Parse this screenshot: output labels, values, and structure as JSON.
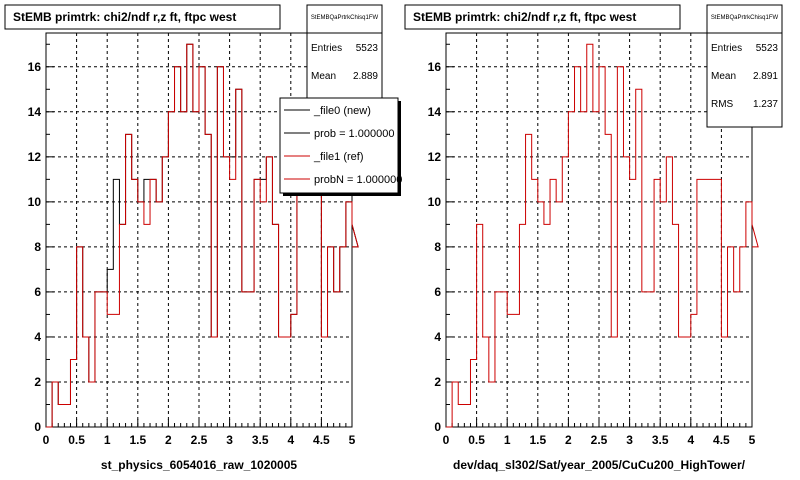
{
  "chart_data": [
    {
      "type": "histogram",
      "title": "StEMB primtrk: chi2/ndf r,z ft, ftpc west",
      "xlabel": "st_physics_6054016_raw_1020005",
      "xlim": [
        0,
        5
      ],
      "ylim": [
        0,
        17.5
      ],
      "grid": true,
      "x_ticks": [
        "0",
        "0.5",
        "1",
        "1.5",
        "2",
        "2.5",
        "3",
        "3.5",
        "4",
        "4.5",
        "5"
      ],
      "y_ticks": [
        "0",
        "2",
        "4",
        "6",
        "8",
        "10",
        "12",
        "14",
        "16"
      ],
      "stats": {
        "name": "StEMBQaPrtrkChisq1FW",
        "rows": [
          {
            "label": "Entries",
            "value": "5523"
          },
          {
            "label": "Mean",
            "value": "2.889"
          }
        ]
      },
      "legend": {
        "placement": "top-right",
        "entries": [
          {
            "label": "_file0 (new)",
            "color": "#000000"
          },
          {
            "label": "prob = 1.000000",
            "color": "#000000"
          },
          {
            "label": "_file1 (ref)",
            "color": "#cc0000"
          },
          {
            "label": "probN = 1.000000",
            "color": "#cc0000"
          }
        ]
      },
      "series": [
        {
          "name": "_file0 (new)",
          "color": "#000000",
          "bin_width": 0.1,
          "x_start": 0,
          "values": [
            0,
            2,
            1,
            1,
            3,
            8,
            4,
            2,
            6,
            6,
            7,
            11,
            9,
            13,
            11,
            10,
            11,
            11,
            10,
            12,
            14,
            16,
            14,
            17,
            14,
            16,
            13,
            4,
            16,
            12,
            12,
            15,
            6,
            6,
            11,
            11,
            12,
            9,
            4,
            4,
            5,
            11,
            11,
            11,
            11,
            4,
            8,
            6,
            8,
            10,
            9,
            8
          ]
        },
        {
          "name": "_file1 (ref)",
          "color": "#cc0000",
          "bin_width": 0.1,
          "x_start": 0,
          "values": [
            0,
            2,
            1,
            1,
            3,
            8,
            4,
            2,
            6,
            6,
            5,
            5,
            9,
            13,
            11,
            10,
            9,
            11,
            10,
            12,
            14,
            16,
            14,
            17,
            14,
            16,
            13,
            4,
            16,
            12,
            11,
            15,
            6,
            6,
            11,
            10,
            12,
            9,
            4,
            4,
            5,
            11,
            11,
            11,
            11,
            4,
            8,
            6,
            8,
            10,
            9,
            8
          ]
        }
      ]
    },
    {
      "type": "histogram",
      "title": "StEMB primtrk: chi2/ndf r,z ft, ftpc west",
      "xlabel": "dev/daq_sl302/Sat/year_2005/CuCu200_HighTower/",
      "xlim": [
        0,
        5
      ],
      "ylim": [
        0,
        17.5
      ],
      "grid": true,
      "x_ticks": [
        "0",
        "0.5",
        "1",
        "1.5",
        "2",
        "2.5",
        "3",
        "3.5",
        "4",
        "4.5",
        "5"
      ],
      "y_ticks": [
        "0",
        "2",
        "4",
        "6",
        "8",
        "10",
        "12",
        "14",
        "16"
      ],
      "stats": {
        "name": "StEMBQaPrtrkChisq1FW",
        "rows": [
          {
            "label": "Entries",
            "value": "5523"
          },
          {
            "label": "Mean",
            "value": "2.891"
          },
          {
            "label": "RMS",
            "value": "1.237"
          }
        ]
      },
      "series": [
        {
          "name": "",
          "color": "#cc0000",
          "bin_width": 0.1,
          "x_start": 0,
          "values": [
            0,
            2,
            1,
            1,
            3,
            9,
            4,
            2,
            6,
            6,
            5,
            5,
            9,
            13,
            11,
            10,
            9,
            11,
            10,
            12,
            14,
            16,
            14,
            17,
            14,
            16,
            13,
            4,
            16,
            12,
            11,
            15,
            6,
            6,
            11,
            10,
            12,
            9,
            4,
            4,
            5,
            11,
            11,
            11,
            11,
            4,
            8,
            6,
            8,
            10,
            9,
            8
          ]
        }
      ]
    }
  ]
}
